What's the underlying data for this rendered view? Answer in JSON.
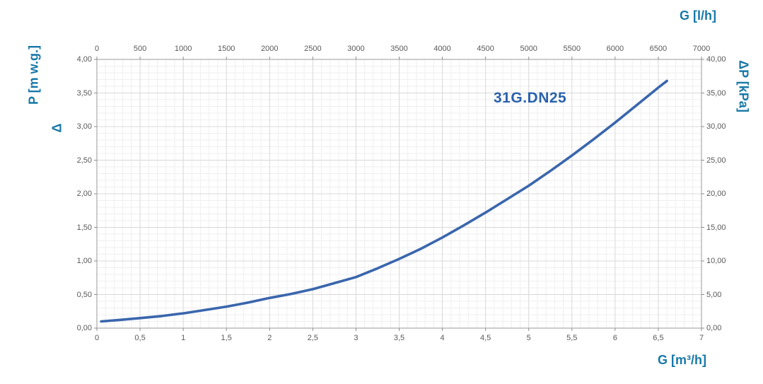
{
  "chart_data": {
    "type": "line",
    "title": "31G.DN25",
    "series": [
      {
        "name": "31G.DN25",
        "x_m3h": [
          0.05,
          0.25,
          0.5,
          0.75,
          1.0,
          1.25,
          1.5,
          1.75,
          2.0,
          2.25,
          2.5,
          2.75,
          3.0,
          3.25,
          3.5,
          3.75,
          4.0,
          4.25,
          4.5,
          4.75,
          5.0,
          5.25,
          5.5,
          5.75,
          6.0,
          6.25,
          6.5,
          6.6
        ],
        "y_mwg": [
          0.1,
          0.12,
          0.15,
          0.18,
          0.22,
          0.27,
          0.32,
          0.38,
          0.45,
          0.51,
          0.58,
          0.67,
          0.76,
          0.89,
          1.03,
          1.18,
          1.35,
          1.53,
          1.72,
          1.92,
          2.12,
          2.34,
          2.57,
          2.81,
          3.06,
          3.32,
          3.58,
          3.68
        ],
        "color": "#3a66ad"
      }
    ],
    "axes": {
      "top_x": {
        "label": "G [l/h]",
        "min": 0,
        "max": 7000,
        "tick_step": 500,
        "ticks": [
          "0",
          "500",
          "1000",
          "1500",
          "2000",
          "2500",
          "3000",
          "3500",
          "4000",
          "4500",
          "5000",
          "5500",
          "6000",
          "6500",
          "7000"
        ]
      },
      "bottom_x": {
        "label": "G [m³/h]",
        "min": 0,
        "max": 7,
        "tick_step": 0.5,
        "ticks": [
          "0",
          "0,5",
          "1",
          "1,5",
          "2",
          "2,5",
          "3",
          "3,5",
          "4",
          "4,5",
          "5",
          "5,5",
          "6",
          "6,5",
          "7"
        ]
      },
      "left_y": {
        "label": "ΔP [m w.g.]",
        "label_line1": "P [m w.g.]",
        "label_line2": "Δ",
        "min": 0,
        "max": 4,
        "tick_step": 0.5,
        "ticks": [
          "0,00",
          "0,50",
          "1,00",
          "1,50",
          "2,00",
          "2,50",
          "3,00",
          "3,50",
          "4,00"
        ]
      },
      "right_y": {
        "label": "ΔP [kPa]",
        "min": 0,
        "max": 40,
        "tick_step": 5,
        "ticks": [
          "0,00",
          "5,00",
          "10,00",
          "15,00",
          "20,00",
          "25,00",
          "30,00",
          "35,00",
          "40,00"
        ]
      }
    },
    "grid": {
      "minor_x_lh": 100,
      "minor_y_mwg": 0.1,
      "major_color": "#d8d8d8",
      "minor_color": "#efefef",
      "border_color": "#9a9a9a",
      "tick_mark_color": "#8c8c8c"
    },
    "colors": {
      "axis_title": "#1878a8",
      "title": "#2a62ad",
      "tick_label": "#595959",
      "curve": "#3a66ad"
    },
    "legend": "none",
    "grid_on": true
  }
}
